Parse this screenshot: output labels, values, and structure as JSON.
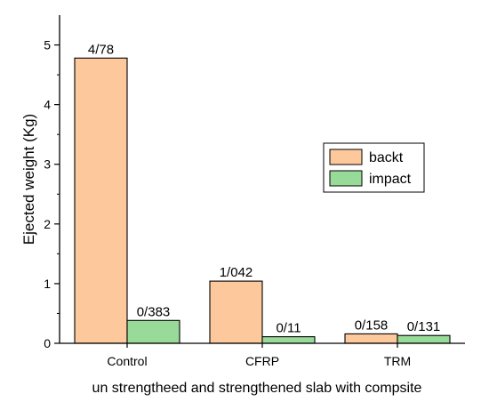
{
  "chart_data": {
    "type": "bar",
    "categories": [
      "Control",
      "CFRP",
      "TRM"
    ],
    "series": [
      {
        "name": "backt",
        "values": [
          4.78,
          1.042,
          0.158
        ],
        "labels": [
          "4/78",
          "1/042",
          "0/158"
        ],
        "color": "#fdc89b"
      },
      {
        "name": "impact",
        "values": [
          0.383,
          0.11,
          0.131
        ],
        "labels": [
          "0/383",
          "0/11",
          "0/131"
        ],
        "color": "#98da98"
      }
    ],
    "xlabel": "un strengtheed and strengthened slab with compsite",
    "ylabel": "Ejected weight (Kg)",
    "ylim": [
      0,
      5.5
    ],
    "yticks": [
      0,
      1,
      2,
      3,
      4,
      5
    ],
    "legend": "right"
  }
}
